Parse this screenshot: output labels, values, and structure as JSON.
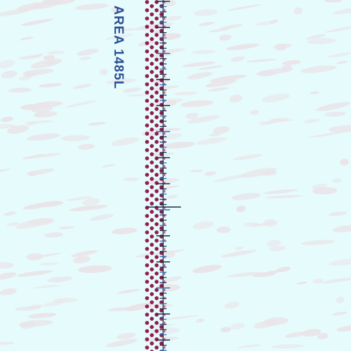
{
  "map": {
    "area_label": "AREA 1485L",
    "colors": {
      "water": "#e6fbfc",
      "texture": "#e9e4e8",
      "dots": "#8f1e4f",
      "label": "#2a4f93",
      "ticks": "#1c2a47",
      "blue_ticks": "#2a6fb8"
    },
    "symbols": [
      "boundary-dot-band",
      "scale-ticks",
      "crosshair-mark"
    ]
  }
}
